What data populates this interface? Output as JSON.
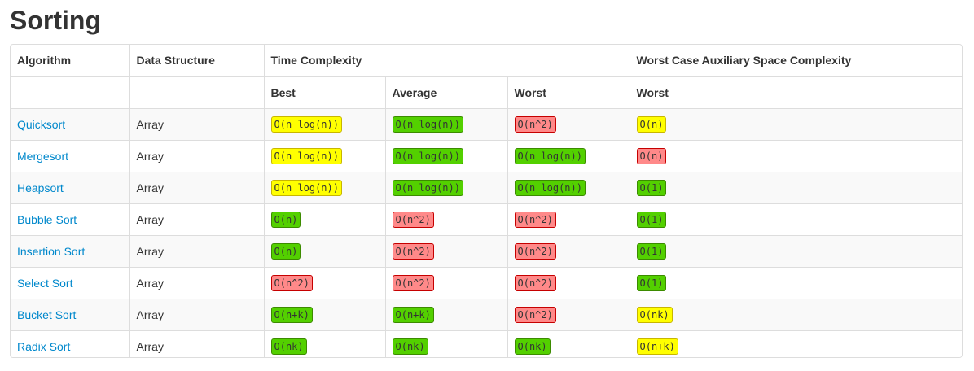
{
  "page": {
    "title": "Sorting"
  },
  "table": {
    "headers": {
      "algorithm": "Algorithm",
      "data_structure": "Data Structure",
      "time_complexity": "Time Complexity",
      "space_complexity": "Worst Case Auxiliary Space Complexity",
      "best": "Best",
      "average": "Average",
      "worst": "Worst",
      "space_worst": "Worst"
    },
    "rows": [
      {
        "algorithm": "Quicksort",
        "data_structure": "Array",
        "best": {
          "text": "O(n log(n))",
          "rating": "fair"
        },
        "average": {
          "text": "O(n log(n))",
          "rating": "good"
        },
        "worst": {
          "text": "O(n^2)",
          "rating": "bad"
        },
        "space": {
          "text": "O(n)",
          "rating": "fair"
        }
      },
      {
        "algorithm": "Mergesort",
        "data_structure": "Array",
        "best": {
          "text": "O(n log(n))",
          "rating": "fair"
        },
        "average": {
          "text": "O(n log(n))",
          "rating": "good"
        },
        "worst": {
          "text": "O(n log(n))",
          "rating": "good"
        },
        "space": {
          "text": "O(n)",
          "rating": "bad"
        }
      },
      {
        "algorithm": "Heapsort",
        "data_structure": "Array",
        "best": {
          "text": "O(n log(n))",
          "rating": "fair"
        },
        "average": {
          "text": "O(n log(n))",
          "rating": "good"
        },
        "worst": {
          "text": "O(n log(n))",
          "rating": "good"
        },
        "space": {
          "text": "O(1)",
          "rating": "good"
        }
      },
      {
        "algorithm": "Bubble Sort",
        "data_structure": "Array",
        "best": {
          "text": "O(n)",
          "rating": "good"
        },
        "average": {
          "text": "O(n^2)",
          "rating": "bad"
        },
        "worst": {
          "text": "O(n^2)",
          "rating": "bad"
        },
        "space": {
          "text": "O(1)",
          "rating": "good"
        }
      },
      {
        "algorithm": "Insertion Sort",
        "data_structure": "Array",
        "best": {
          "text": "O(n)",
          "rating": "good"
        },
        "average": {
          "text": "O(n^2)",
          "rating": "bad"
        },
        "worst": {
          "text": "O(n^2)",
          "rating": "bad"
        },
        "space": {
          "text": "O(1)",
          "rating": "good"
        }
      },
      {
        "algorithm": "Select Sort",
        "data_structure": "Array",
        "best": {
          "text": "O(n^2)",
          "rating": "bad"
        },
        "average": {
          "text": "O(n^2)",
          "rating": "bad"
        },
        "worst": {
          "text": "O(n^2)",
          "rating": "bad"
        },
        "space": {
          "text": "O(1)",
          "rating": "good"
        }
      },
      {
        "algorithm": "Bucket Sort",
        "data_structure": "Array",
        "best": {
          "text": "O(n+k)",
          "rating": "good"
        },
        "average": {
          "text": "O(n+k)",
          "rating": "good"
        },
        "worst": {
          "text": "O(n^2)",
          "rating": "bad"
        },
        "space": {
          "text": "O(nk)",
          "rating": "fair"
        }
      },
      {
        "algorithm": "Radix Sort",
        "data_structure": "Array",
        "best": {
          "text": "O(nk)",
          "rating": "good"
        },
        "average": {
          "text": "O(nk)",
          "rating": "good"
        },
        "worst": {
          "text": "O(nk)",
          "rating": "good"
        },
        "space": {
          "text": "O(n+k)",
          "rating": "fair"
        }
      }
    ]
  },
  "colors": {
    "good": "#53d000",
    "fair": "#ffff00",
    "bad": "#ff8989",
    "link": "#0088cc"
  }
}
